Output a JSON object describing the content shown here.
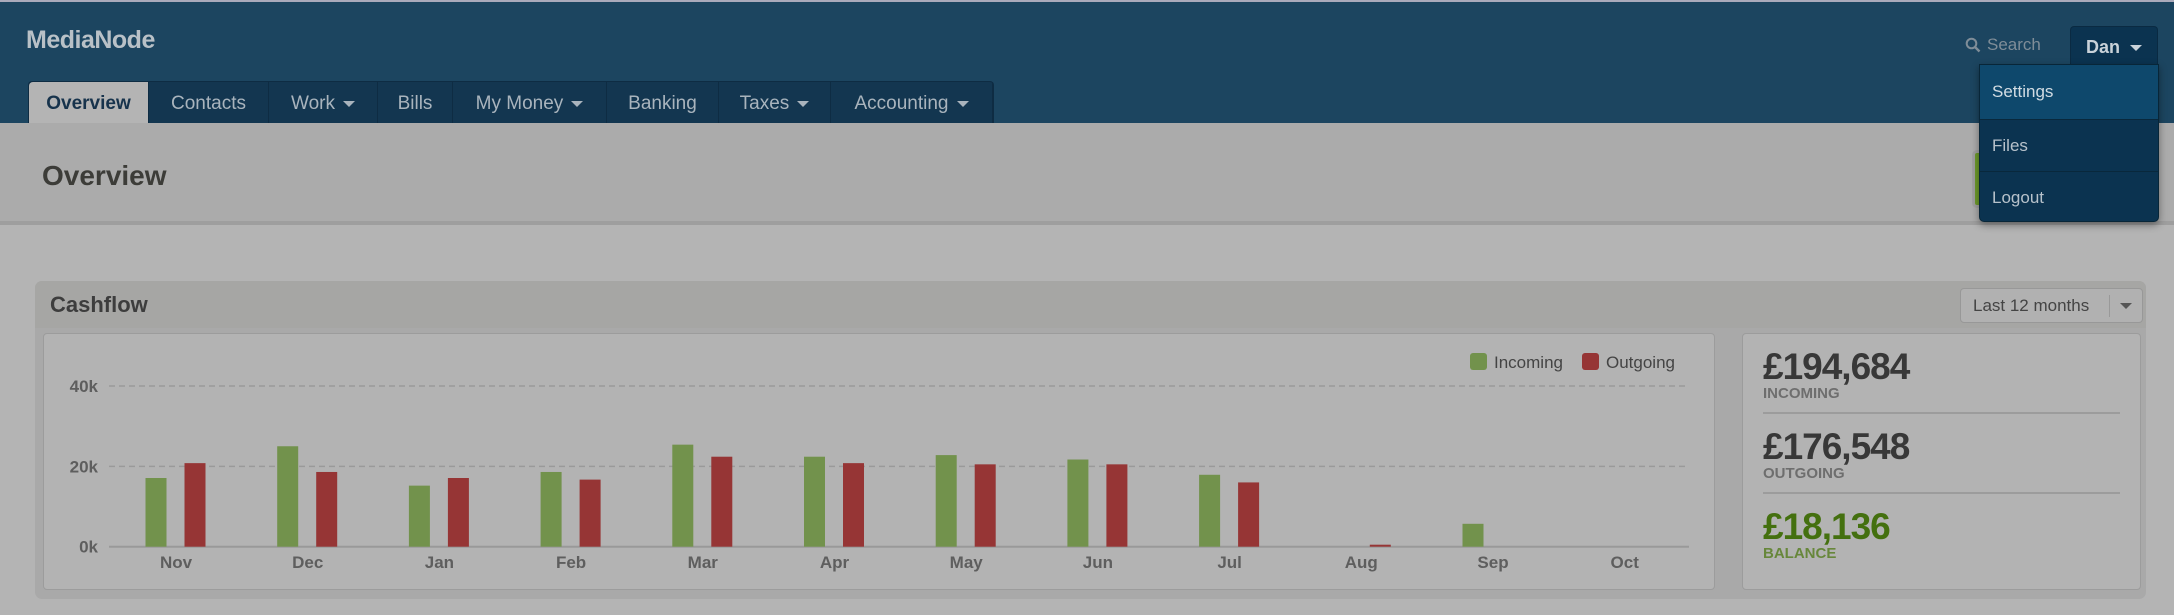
{
  "app": {
    "brand": "MediaNode"
  },
  "nav": {
    "tabs": [
      {
        "label": "Overview",
        "active": true,
        "dropdown": false
      },
      {
        "label": "Contacts",
        "dropdown": false
      },
      {
        "label": "Work",
        "dropdown": true
      },
      {
        "label": "Bills",
        "dropdown": false
      },
      {
        "label": "My Money",
        "dropdown": true
      },
      {
        "label": "Banking",
        "dropdown": false
      },
      {
        "label": "Taxes",
        "dropdown": true
      },
      {
        "label": "Accounting",
        "dropdown": true
      }
    ]
  },
  "search": {
    "label": "Search",
    "icon": "search-icon"
  },
  "user": {
    "name": "Dan",
    "menu": [
      {
        "label": "Settings",
        "highlighted": true
      },
      {
        "label": "Files"
      },
      {
        "label": "Logout"
      }
    ]
  },
  "page": {
    "title": "Overview"
  },
  "cashflow": {
    "title": "Cashflow",
    "range": "Last 12 months",
    "stats": [
      {
        "amount": "£194,684",
        "label": "INCOMING"
      },
      {
        "amount": "£176,548",
        "label": "OUTGOING"
      },
      {
        "amount": "£18,136",
        "label": "BALANCE"
      }
    ]
  },
  "colors": {
    "incoming": "#72924c",
    "outgoing": "#963535",
    "header": "#1c4560",
    "balance": "#44700f"
  },
  "chart_data": {
    "type": "bar",
    "categories": [
      "Nov",
      "Dec",
      "Jan",
      "Feb",
      "Mar",
      "Apr",
      "May",
      "Jun",
      "Jul",
      "Aug",
      "Sep",
      "Oct"
    ],
    "series": [
      {
        "name": "Incoming",
        "values": [
          17100,
          25000,
          15200,
          18600,
          25400,
          22400,
          22800,
          21700,
          17900,
          0,
          5700,
          0
        ]
      },
      {
        "name": "Outgoing",
        "values": [
          20800,
          18600,
          17100,
          16700,
          22400,
          20800,
          20500,
          20500,
          16000,
          500,
          0,
          0
        ]
      }
    ],
    "yticks": [
      "0k",
      "20k",
      "40k"
    ],
    "ylim": [
      0,
      40000
    ],
    "grid": true,
    "legend": "top-right"
  }
}
